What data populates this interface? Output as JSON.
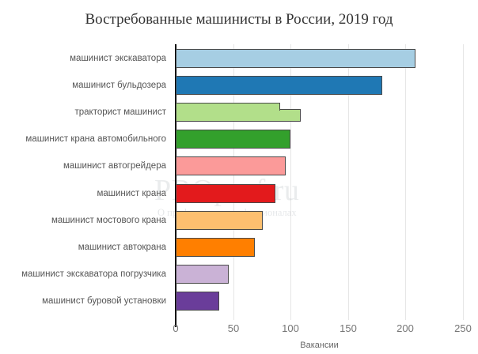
{
  "chart_data": {
    "type": "bar",
    "orientation": "horizontal",
    "title": "Востребованные машинисты в России, 2019 год",
    "xlabel": "Вакансии",
    "ylabel": "",
    "xlim": [
      0,
      250
    ],
    "xticks": [
      0,
      50,
      100,
      150,
      200,
      250
    ],
    "grid": true,
    "legend": "none",
    "categories": [
      "машинист экскаватора",
      "машинист бульдозера",
      "тракторист машинист",
      "машинист крана автомобильного",
      "машинист автогрейдера",
      "машинист крана",
      "машинист мостового крана",
      "машинист автокрана",
      "машинист экскаватора погрузчика",
      "машинист буровой установки"
    ],
    "values": [
      209,
      180,
      109,
      100,
      96,
      87,
      76,
      69,
      46,
      38
    ],
    "annotations": [
      "тракторист машинист bar shows a step: upper portion ≈91, lower portion ≈109"
    ],
    "colors": [
      "#a6cee3",
      "#1f78b4",
      "#b2df8a",
      "#33a02c",
      "#fb9a99",
      "#e31a1c",
      "#fdbf6f",
      "#ff7f00",
      "#cab2d6",
      "#6a3d9a"
    ]
  },
  "header": {
    "title": "Востребованные машинисты в России, 2019 год"
  },
  "axis": {
    "x_title": "Вакансии",
    "ticks": [
      "0",
      "50",
      "100",
      "150",
      "200",
      "250"
    ]
  },
  "watermark": {
    "main": "PROprof.ru",
    "sub": "О профессиях и профессионалах"
  }
}
